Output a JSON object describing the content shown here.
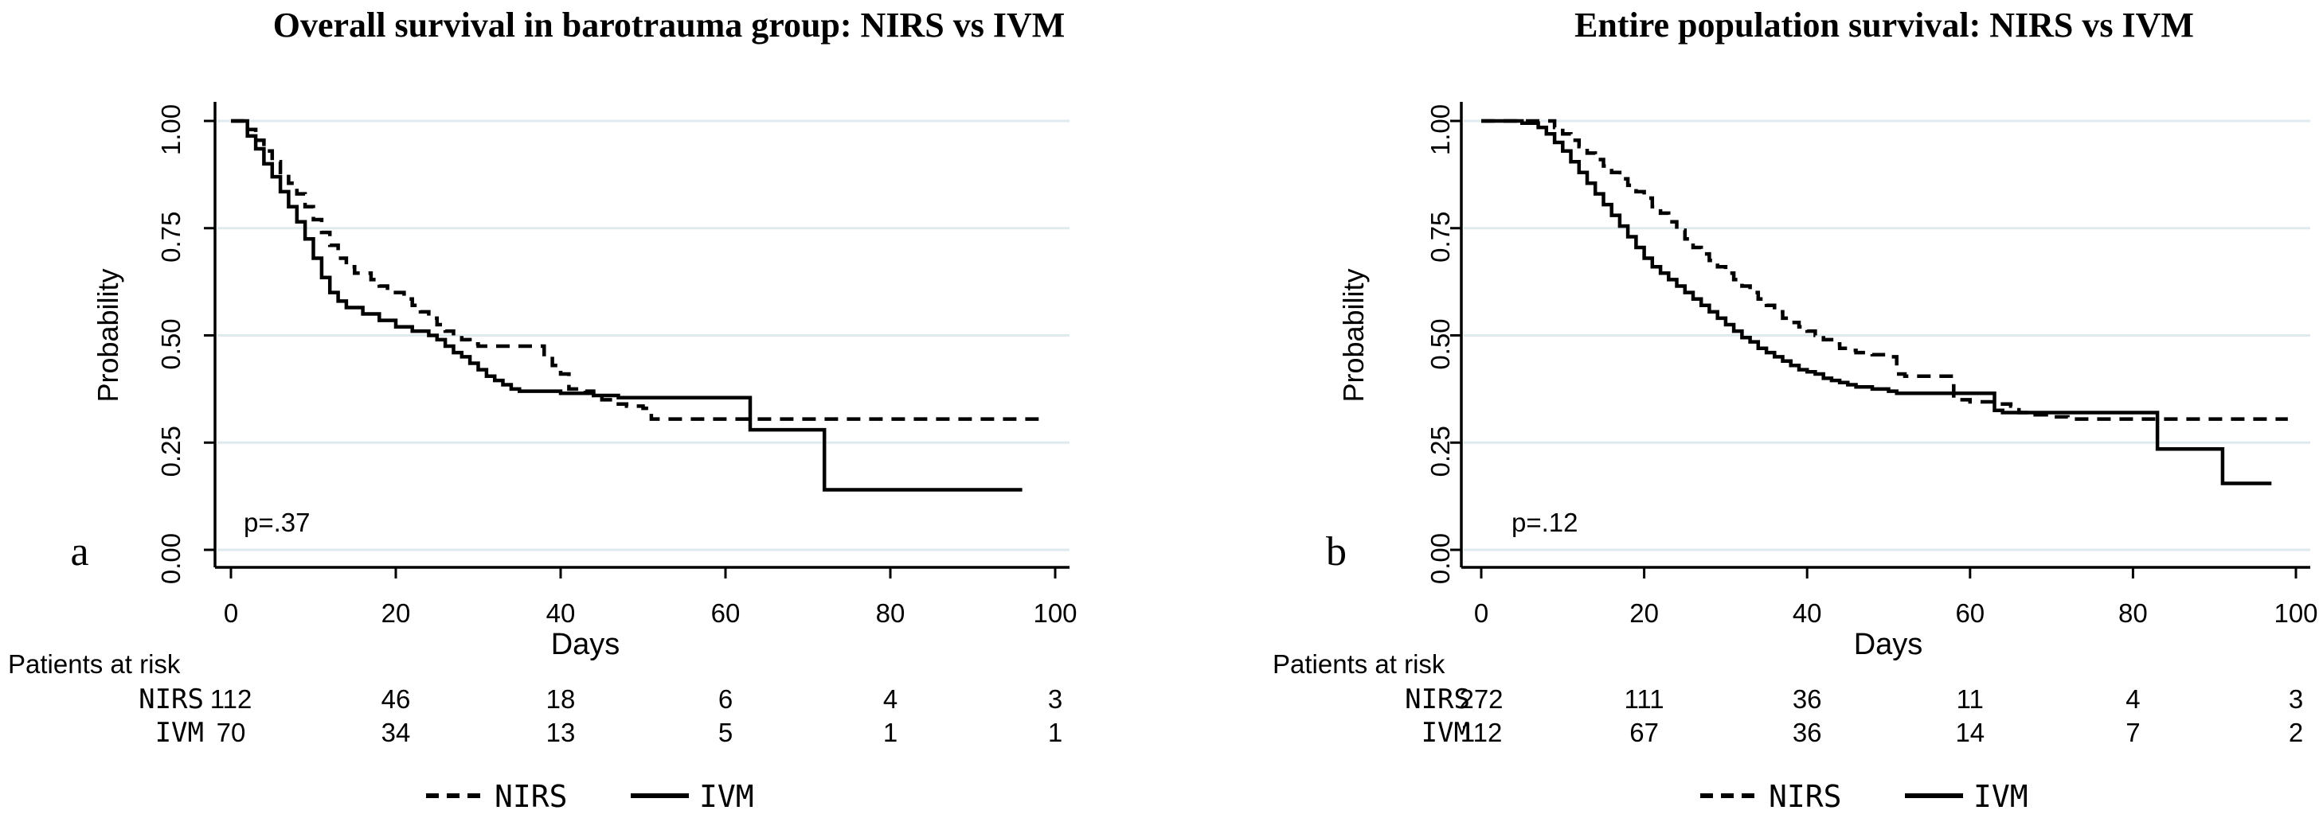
{
  "figure": {
    "background_color": "#ffffff",
    "line_color": "#000000",
    "grid_color": "#dfeaee",
    "axis_color": "#000000"
  },
  "chart_data": [
    {
      "type": "line",
      "subtype": "kaplan-meier-step",
      "panel_letter": "a",
      "title": "Overall survival in barotrauma group: NIRS vs IVM",
      "xlabel": "Days",
      "ylabel": "Probability",
      "annotation": "p=.37",
      "xlim": [
        0,
        100
      ],
      "ylim": [
        0,
        1
      ],
      "x_ticks": [
        0,
        20,
        40,
        60,
        80,
        100
      ],
      "y_ticks": [
        0,
        0.25,
        0.5,
        0.75,
        1
      ],
      "y_tick_labels": [
        "0.00",
        "0.25",
        "0.50",
        "0.75",
        "1.00"
      ],
      "grid": "horizontal",
      "legend_position": "bottom",
      "series": [
        {
          "name": "NIRS",
          "line_style": "dashed",
          "color": "#000000",
          "points": [
            [
              0,
              1
            ],
            [
              2,
              0.98
            ],
            [
              3,
              0.955
            ],
            [
              4,
              0.93
            ],
            [
              5,
              0.905
            ],
            [
              6,
              0.88
            ],
            [
              7,
              0.855
            ],
            [
              8,
              0.83
            ],
            [
              9,
              0.8
            ],
            [
              10,
              0.77
            ],
            [
              11,
              0.74
            ],
            [
              12,
              0.71
            ],
            [
              13,
              0.68
            ],
            [
              14,
              0.66
            ],
            [
              15,
              0.645
            ],
            [
              17,
              0.63
            ],
            [
              18,
              0.615
            ],
            [
              19,
              0.6
            ],
            [
              21,
              0.585
            ],
            [
              22,
              0.57
            ],
            [
              23,
              0.555
            ],
            [
              24,
              0.54
            ],
            [
              25,
              0.525
            ],
            [
              26,
              0.51
            ],
            [
              27,
              0.5
            ],
            [
              28,
              0.49
            ],
            [
              29,
              0.48
            ],
            [
              30,
              0.475
            ],
            [
              37,
              0.475
            ],
            [
              38,
              0.45
            ],
            [
              39,
              0.43
            ],
            [
              40,
              0.41
            ],
            [
              41,
              0.375
            ],
            [
              43,
              0.37
            ],
            [
              44,
              0.36
            ],
            [
              45,
              0.35
            ],
            [
              47,
              0.34
            ],
            [
              48,
              0.335
            ],
            [
              50,
              0.33
            ],
            [
              51,
              0.305
            ],
            [
              98,
              0.305
            ]
          ]
        },
        {
          "name": "IVM",
          "line_style": "solid",
          "color": "#000000",
          "points": [
            [
              0,
              1
            ],
            [
              2,
              0.965
            ],
            [
              3,
              0.935
            ],
            [
              4,
              0.9
            ],
            [
              5,
              0.87
            ],
            [
              6,
              0.835
            ],
            [
              7,
              0.8
            ],
            [
              8,
              0.765
            ],
            [
              9,
              0.725
            ],
            [
              10,
              0.68
            ],
            [
              11,
              0.635
            ],
            [
              12,
              0.6
            ],
            [
              13,
              0.58
            ],
            [
              14,
              0.565
            ],
            [
              16,
              0.55
            ],
            [
              18,
              0.535
            ],
            [
              20,
              0.52
            ],
            [
              22,
              0.51
            ],
            [
              24,
              0.5
            ],
            [
              25,
              0.49
            ],
            [
              26,
              0.475
            ],
            [
              27,
              0.46
            ],
            [
              28,
              0.45
            ],
            [
              29,
              0.435
            ],
            [
              30,
              0.42
            ],
            [
              31,
              0.405
            ],
            [
              32,
              0.395
            ],
            [
              33,
              0.385
            ],
            [
              34,
              0.375
            ],
            [
              35,
              0.37
            ],
            [
              40,
              0.365
            ],
            [
              44,
              0.36
            ],
            [
              47,
              0.355
            ],
            [
              62,
              0.355
            ],
            [
              63,
              0.28
            ],
            [
              71,
              0.28
            ],
            [
              72,
              0.14
            ],
            [
              96,
              0.14
            ]
          ]
        }
      ],
      "at_risk_table": {
        "header": "Patients at risk",
        "times": [
          0,
          20,
          40,
          60,
          80,
          100
        ],
        "rows": [
          {
            "label": "NIRS",
            "counts": [
              112,
              46,
              18,
              6,
              4,
              3
            ]
          },
          {
            "label": "IVM",
            "counts": [
              70,
              34,
              13,
              5,
              1,
              1
            ]
          }
        ]
      },
      "legend": [
        {
          "label": "NIRS",
          "line_style": "dashed"
        },
        {
          "label": "IVM",
          "line_style": "solid"
        }
      ]
    },
    {
      "type": "line",
      "subtype": "kaplan-meier-step",
      "panel_letter": "b",
      "title": "Entire population survival: NIRS vs IVM",
      "xlabel": "Days",
      "ylabel": "Probability",
      "annotation": "p=.12",
      "xlim": [
        0,
        100
      ],
      "ylim": [
        0,
        1
      ],
      "x_ticks": [
        0,
        20,
        40,
        60,
        80,
        100
      ],
      "y_ticks": [
        0,
        0.25,
        0.5,
        0.75,
        1
      ],
      "y_tick_labels": [
        "0.00",
        "0.25",
        "0.50",
        "0.75",
        "1.00"
      ],
      "grid": "horizontal",
      "legend_position": "bottom",
      "series": [
        {
          "name": "NIRS",
          "line_style": "dashed",
          "color": "#000000",
          "points": [
            [
              0,
              1
            ],
            [
              8,
              1
            ],
            [
              9,
              0.985
            ],
            [
              10,
              0.97
            ],
            [
              11,
              0.955
            ],
            [
              12,
              0.94
            ],
            [
              13,
              0.925
            ],
            [
              14,
              0.91
            ],
            [
              15,
              0.895
            ],
            [
              16,
              0.88
            ],
            [
              17,
              0.865
            ],
            [
              18,
              0.85
            ],
            [
              19,
              0.835
            ],
            [
              20,
              0.82
            ],
            [
              21,
              0.8
            ],
            [
              22,
              0.785
            ],
            [
              23,
              0.765
            ],
            [
              24,
              0.745
            ],
            [
              25,
              0.725
            ],
            [
              26,
              0.705
            ],
            [
              27,
              0.69
            ],
            [
              28,
              0.675
            ],
            [
              29,
              0.66
            ],
            [
              30,
              0.645
            ],
            [
              31,
              0.63
            ],
            [
              32,
              0.615
            ],
            [
              33,
              0.6
            ],
            [
              34,
              0.585
            ],
            [
              35,
              0.57
            ],
            [
              36,
              0.555
            ],
            [
              37,
              0.54
            ],
            [
              38,
              0.53
            ],
            [
              39,
              0.52
            ],
            [
              40,
              0.51
            ],
            [
              41,
              0.5
            ],
            [
              42,
              0.49
            ],
            [
              43,
              0.48
            ],
            [
              44,
              0.47
            ],
            [
              45,
              0.465
            ],
            [
              46,
              0.46
            ],
            [
              48,
              0.455
            ],
            [
              50,
              0.45
            ],
            [
              51,
              0.41
            ],
            [
              52,
              0.405
            ],
            [
              57,
              0.405
            ],
            [
              58,
              0.35
            ],
            [
              60,
              0.345
            ],
            [
              63,
              0.34
            ],
            [
              65,
              0.335
            ],
            [
              66,
              0.32
            ],
            [
              68,
              0.315
            ],
            [
              70,
              0.31
            ],
            [
              72,
              0.305
            ],
            [
              99,
              0.305
            ]
          ]
        },
        {
          "name": "IVM",
          "line_style": "solid",
          "color": "#000000",
          "points": [
            [
              0,
              1
            ],
            [
              5,
              0.995
            ],
            [
              7,
              0.985
            ],
            [
              8,
              0.97
            ],
            [
              9,
              0.95
            ],
            [
              10,
              0.93
            ],
            [
              11,
              0.905
            ],
            [
              12,
              0.88
            ],
            [
              13,
              0.855
            ],
            [
              14,
              0.83
            ],
            [
              15,
              0.805
            ],
            [
              16,
              0.78
            ],
            [
              17,
              0.755
            ],
            [
              18,
              0.73
            ],
            [
              19,
              0.705
            ],
            [
              20,
              0.68
            ],
            [
              21,
              0.66
            ],
            [
              22,
              0.645
            ],
            [
              23,
              0.63
            ],
            [
              24,
              0.615
            ],
            [
              25,
              0.6
            ],
            [
              26,
              0.585
            ],
            [
              27,
              0.57
            ],
            [
              28,
              0.555
            ],
            [
              29,
              0.54
            ],
            [
              30,
              0.525
            ],
            [
              31,
              0.51
            ],
            [
              32,
              0.495
            ],
            [
              33,
              0.485
            ],
            [
              34,
              0.47
            ],
            [
              35,
              0.46
            ],
            [
              36,
              0.45
            ],
            [
              37,
              0.44
            ],
            [
              38,
              0.43
            ],
            [
              39,
              0.42
            ],
            [
              40,
              0.415
            ],
            [
              41,
              0.41
            ],
            [
              42,
              0.4
            ],
            [
              43,
              0.395
            ],
            [
              44,
              0.39
            ],
            [
              45,
              0.385
            ],
            [
              46,
              0.38
            ],
            [
              48,
              0.375
            ],
            [
              50,
              0.37
            ],
            [
              51,
              0.365
            ],
            [
              62,
              0.365
            ],
            [
              63,
              0.325
            ],
            [
              64,
              0.32
            ],
            [
              82,
              0.32
            ],
            [
              83,
              0.235
            ],
            [
              90,
              0.235
            ],
            [
              91,
              0.155
            ],
            [
              97,
              0.155
            ]
          ]
        }
      ],
      "at_risk_table": {
        "header": "Patients at risk",
        "times": [
          0,
          20,
          40,
          60,
          80,
          100
        ],
        "rows": [
          {
            "label": "NIRS",
            "counts": [
              272,
              111,
              36,
              11,
              4,
              3
            ]
          },
          {
            "label": "IVM",
            "counts": [
              112,
              67,
              36,
              14,
              7,
              2
            ]
          }
        ]
      },
      "legend": [
        {
          "label": "NIRS",
          "line_style": "dashed"
        },
        {
          "label": "IVM",
          "line_style": "solid"
        }
      ]
    }
  ]
}
